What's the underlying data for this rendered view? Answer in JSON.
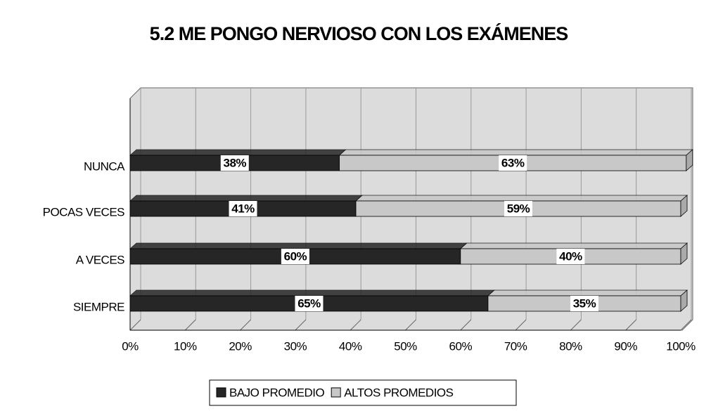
{
  "chart_data": {
    "type": "bar",
    "orientation": "horizontal",
    "stacked": true,
    "title": "5.2 ME PONGO NERVIOSO CON LOS EXÁMENES",
    "categories": [
      "NUNCA",
      "POCAS VECES",
      "A VECES",
      "SIEMPRE"
    ],
    "series": [
      {
        "name": "BAJO PROMEDIO",
        "color": "#262626",
        "values": [
          38,
          41,
          60,
          65
        ],
        "value_labels": [
          "38%",
          "41%",
          "60%",
          "65%"
        ]
      },
      {
        "name": "ALTOS PROMEDIOS",
        "color": "#c8c8c8",
        "values": [
          63,
          59,
          40,
          35
        ],
        "value_labels": [
          "63%",
          "59%",
          "40%",
          "35%"
        ]
      }
    ],
    "xlim": [
      0,
      100
    ],
    "xticks": [
      {
        "value": 0,
        "label": "0%"
      },
      {
        "value": 10,
        "label": "10%"
      },
      {
        "value": 20,
        "label": "20%"
      },
      {
        "value": 30,
        "label": "30%"
      },
      {
        "value": 40,
        "label": "40%"
      },
      {
        "value": 50,
        "label": "50%"
      },
      {
        "value": 60,
        "label": "60%"
      },
      {
        "value": 70,
        "label": "70%"
      },
      {
        "value": 80,
        "label": "80%"
      },
      {
        "value": 90,
        "label": "90%"
      },
      {
        "value": 100,
        "label": "100%"
      }
    ],
    "grid": true,
    "legend": "bottom"
  }
}
